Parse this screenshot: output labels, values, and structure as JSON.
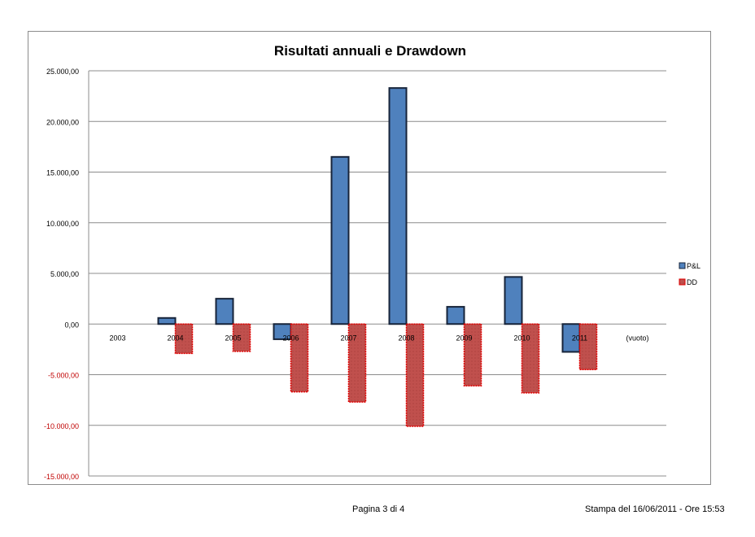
{
  "chart_data": {
    "type": "bar",
    "title": "Risultati annuali e Drawdown",
    "categories": [
      "2003",
      "2004",
      "2005",
      "2006",
      "2007",
      "2008",
      "2009",
      "2010",
      "2011",
      "(vuoto)"
    ],
    "ylim": [
      -15000,
      25000
    ],
    "yticks": [
      25000,
      20000,
      15000,
      10000,
      5000,
      0,
      -5000,
      -10000,
      -15000
    ],
    "ytick_labels": [
      "25.000,00",
      "20.000,00",
      "15.000,00",
      "10.000,00",
      "5.000,00",
      "0,00",
      "-5.000,00",
      "-10.000,00",
      "-15.000,00"
    ],
    "grid": true,
    "legend_position": "right",
    "series": [
      {
        "name": "P&L",
        "color": "#4f81bd",
        "border": "#17243a",
        "values": [
          0,
          600,
          2500,
          -1500,
          16500,
          23300,
          1700,
          4650,
          -2750,
          null
        ]
      },
      {
        "name": "DD",
        "color": "#c0504d",
        "border": "#e00000",
        "values": [
          0,
          -2900,
          -2700,
          -6700,
          -7700,
          -10100,
          -6100,
          -6800,
          -4500,
          null
        ]
      }
    ],
    "negative_label_color": "#c00000"
  },
  "footer": {
    "page": "Pagina 3 di 4",
    "printed": "Stampa del 16/06/2011 - Ore 15:53"
  }
}
